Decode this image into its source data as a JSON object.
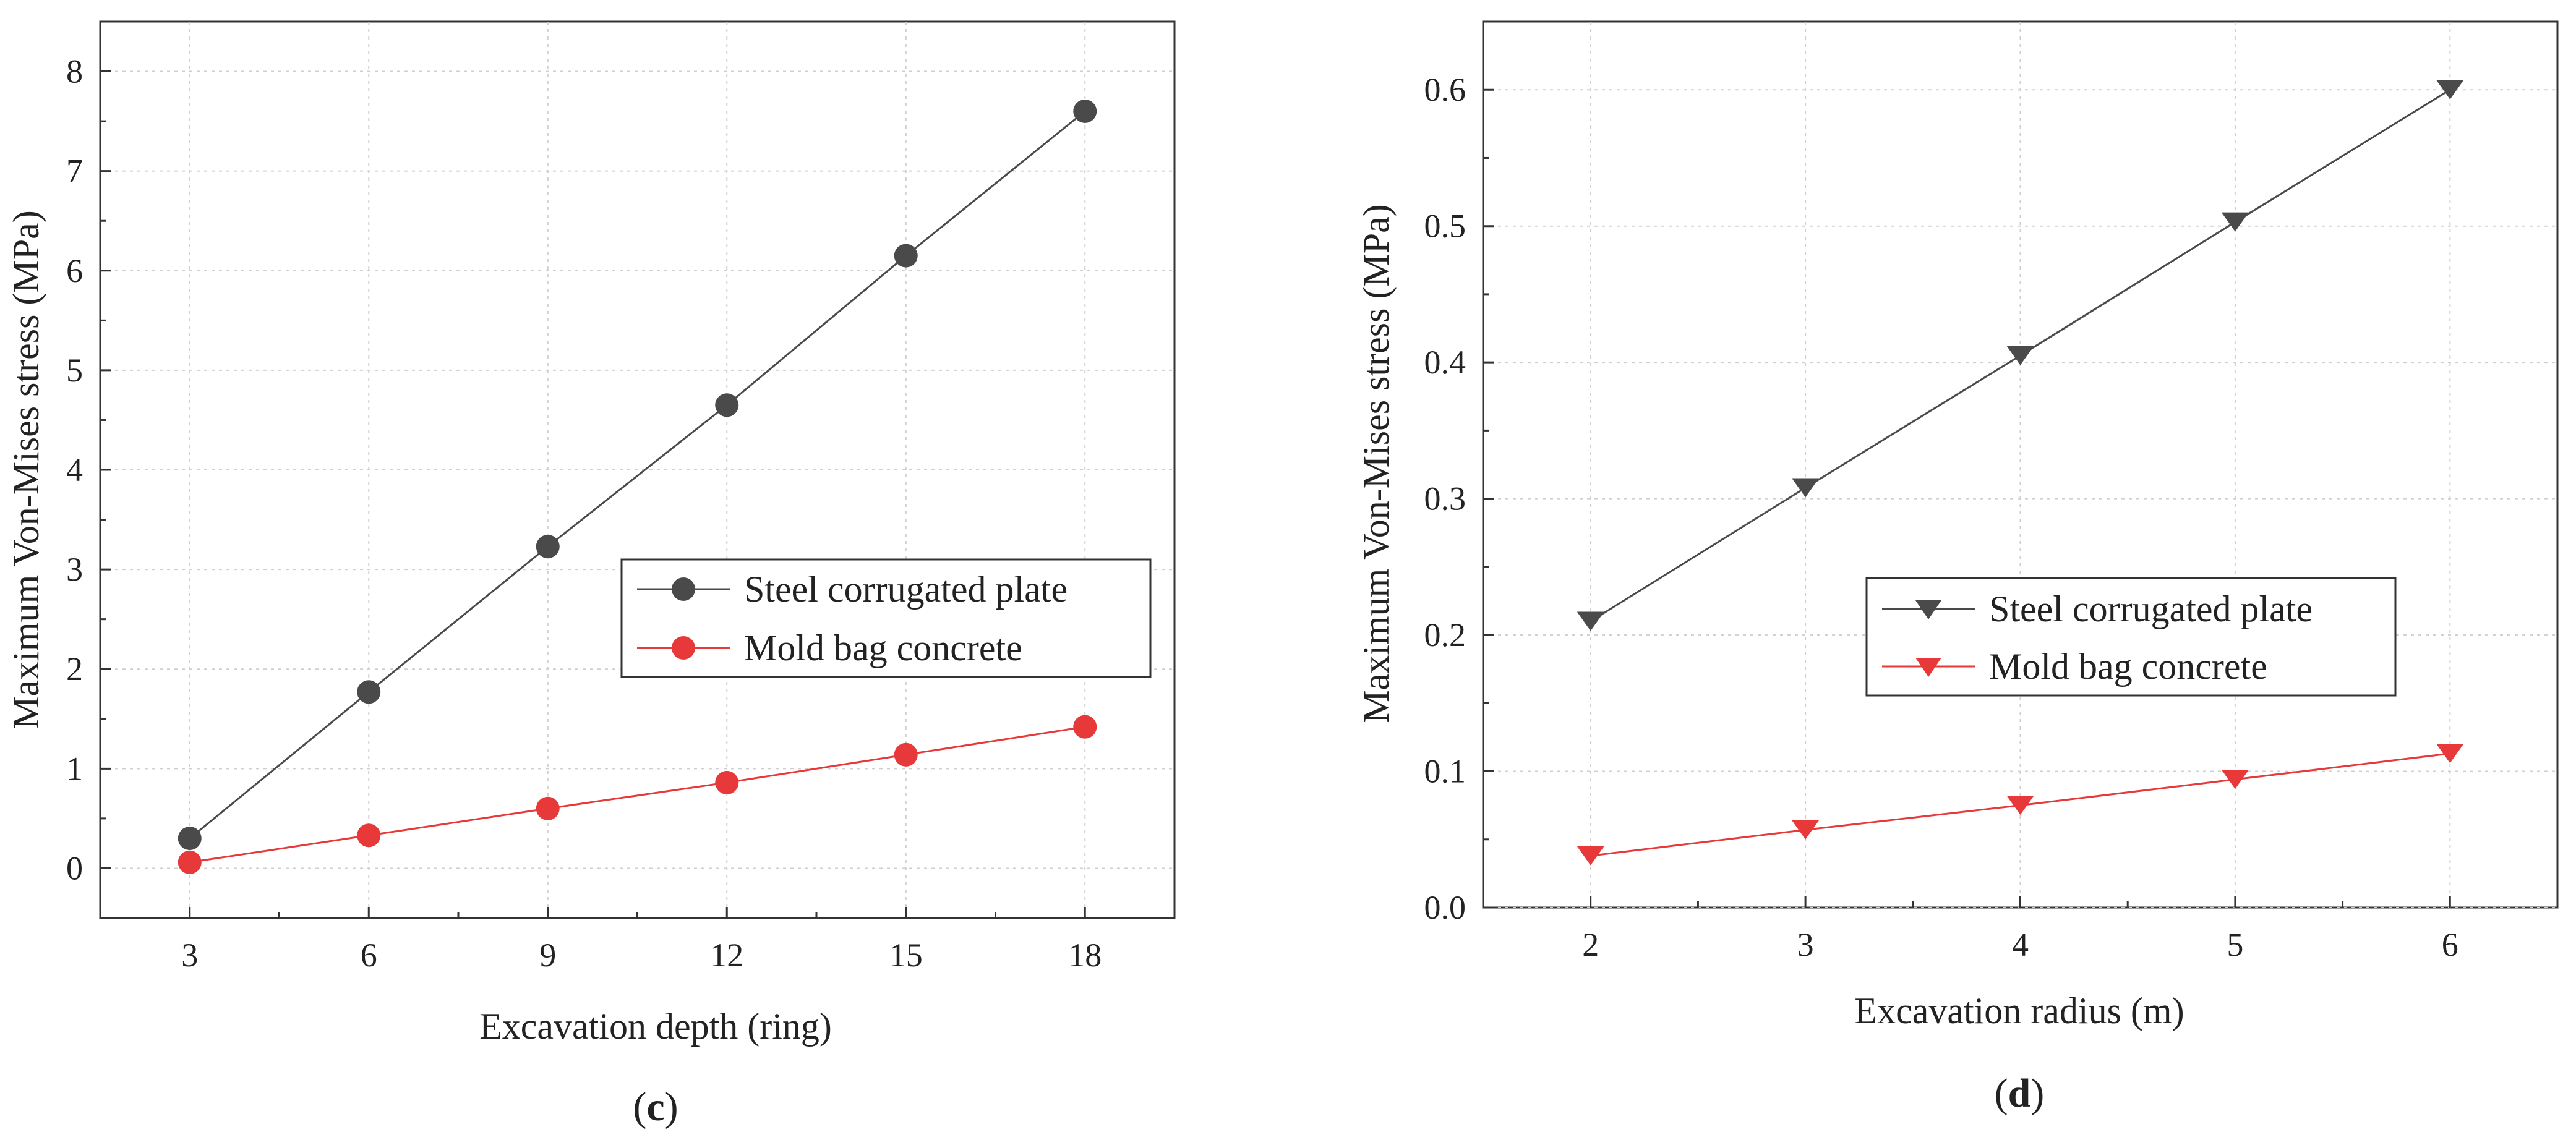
{
  "chart_data": [
    {
      "type": "line",
      "panel_label": "c",
      "xlabel": "Excavation depth (ring)",
      "ylabel": "Maximum Von-Mises stress (MPa)",
      "x": [
        3,
        6,
        9,
        12,
        15,
        18
      ],
      "xlim": [
        1.5,
        19.5
      ],
      "ylim": [
        -0.5,
        8.5
      ],
      "xticks": [
        "3",
        "6",
        "9",
        "12",
        "15",
        "18"
      ],
      "xtick_values": [
        3,
        6,
        9,
        12,
        15,
        18
      ],
      "yticks": [
        "0",
        "1",
        "2",
        "3",
        "4",
        "5",
        "6",
        "7",
        "8"
      ],
      "ytick_values": [
        0,
        1,
        2,
        3,
        4,
        5,
        6,
        7,
        8
      ],
      "grid": true,
      "legend_position": "center-right",
      "marker": "circle",
      "series": [
        {
          "name": "Steel corrugated plate",
          "color": "#4a4a4a",
          "values": [
            0.3,
            1.77,
            3.23,
            4.65,
            6.15,
            7.6
          ]
        },
        {
          "name": "Mold bag concrete",
          "color": "#e8393a",
          "values": [
            0.06,
            0.33,
            0.6,
            0.86,
            1.14,
            1.42
          ]
        }
      ]
    },
    {
      "type": "line",
      "panel_label": "d",
      "xlabel": "Excavation radius (m)",
      "ylabel": "Maximum Von-Mises stress (MPa)",
      "x": [
        2,
        3,
        4,
        5,
        6
      ],
      "xlim": [
        1.5,
        6.5
      ],
      "ylim": [
        0.0,
        0.65
      ],
      "xticks": [
        "2",
        "3",
        "4",
        "5",
        "6"
      ],
      "xtick_values": [
        2,
        3,
        4,
        5,
        6
      ],
      "yticks": [
        "0.0",
        "0.1",
        "0.2",
        "0.3",
        "0.4",
        "0.5",
        "0.6"
      ],
      "ytick_values": [
        0,
        0.1,
        0.2,
        0.3,
        0.4,
        0.5,
        0.6
      ],
      "grid": true,
      "legend_position": "center-right",
      "marker": "triangle-down",
      "series": [
        {
          "name": "Steel corrugated plate",
          "color": "#4a4a4a",
          "values": [
            0.21,
            0.308,
            0.405,
            0.503,
            0.6
          ]
        },
        {
          "name": "Mold bag concrete",
          "color": "#e8393a",
          "values": [
            0.038,
            0.057,
            0.075,
            0.094,
            0.113
          ]
        }
      ]
    }
  ]
}
